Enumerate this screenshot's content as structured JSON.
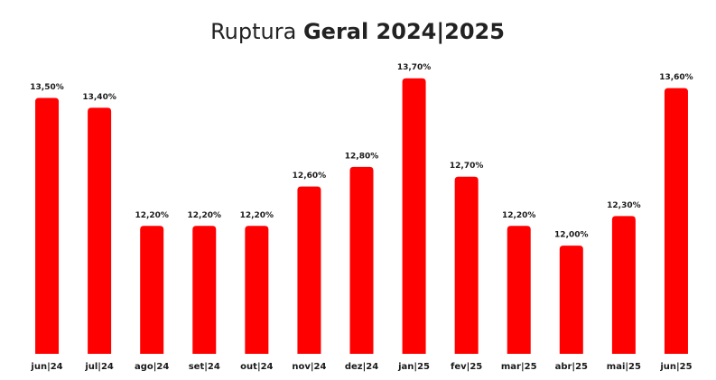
{
  "chart_data": {
    "type": "bar",
    "title": "Ruptura",
    "title_bold": "Geral 2024|2025",
    "categories": [
      "jun|24",
      "jul|24",
      "ago|24",
      "set|24",
      "out|24",
      "nov|24",
      "dez|24",
      "jan|25",
      "fev|25",
      "mar|25",
      "abr|25",
      "mai|25",
      "jun|25"
    ],
    "values": [
      13.5,
      13.4,
      12.2,
      12.2,
      12.2,
      12.6,
      12.8,
      13.7,
      12.7,
      12.2,
      12.0,
      12.3,
      13.6
    ],
    "value_labels": [
      "13,50%",
      "13,40%",
      "12,20%",
      "12,20%",
      "12,20%",
      "12,60%",
      "12,80%",
      "13,70%",
      "12,70%",
      "12,20%",
      "12,00%",
      "12,30%",
      "13,60%"
    ],
    "color": "#ff0000",
    "ylim": [
      10.9,
      14
    ]
  }
}
